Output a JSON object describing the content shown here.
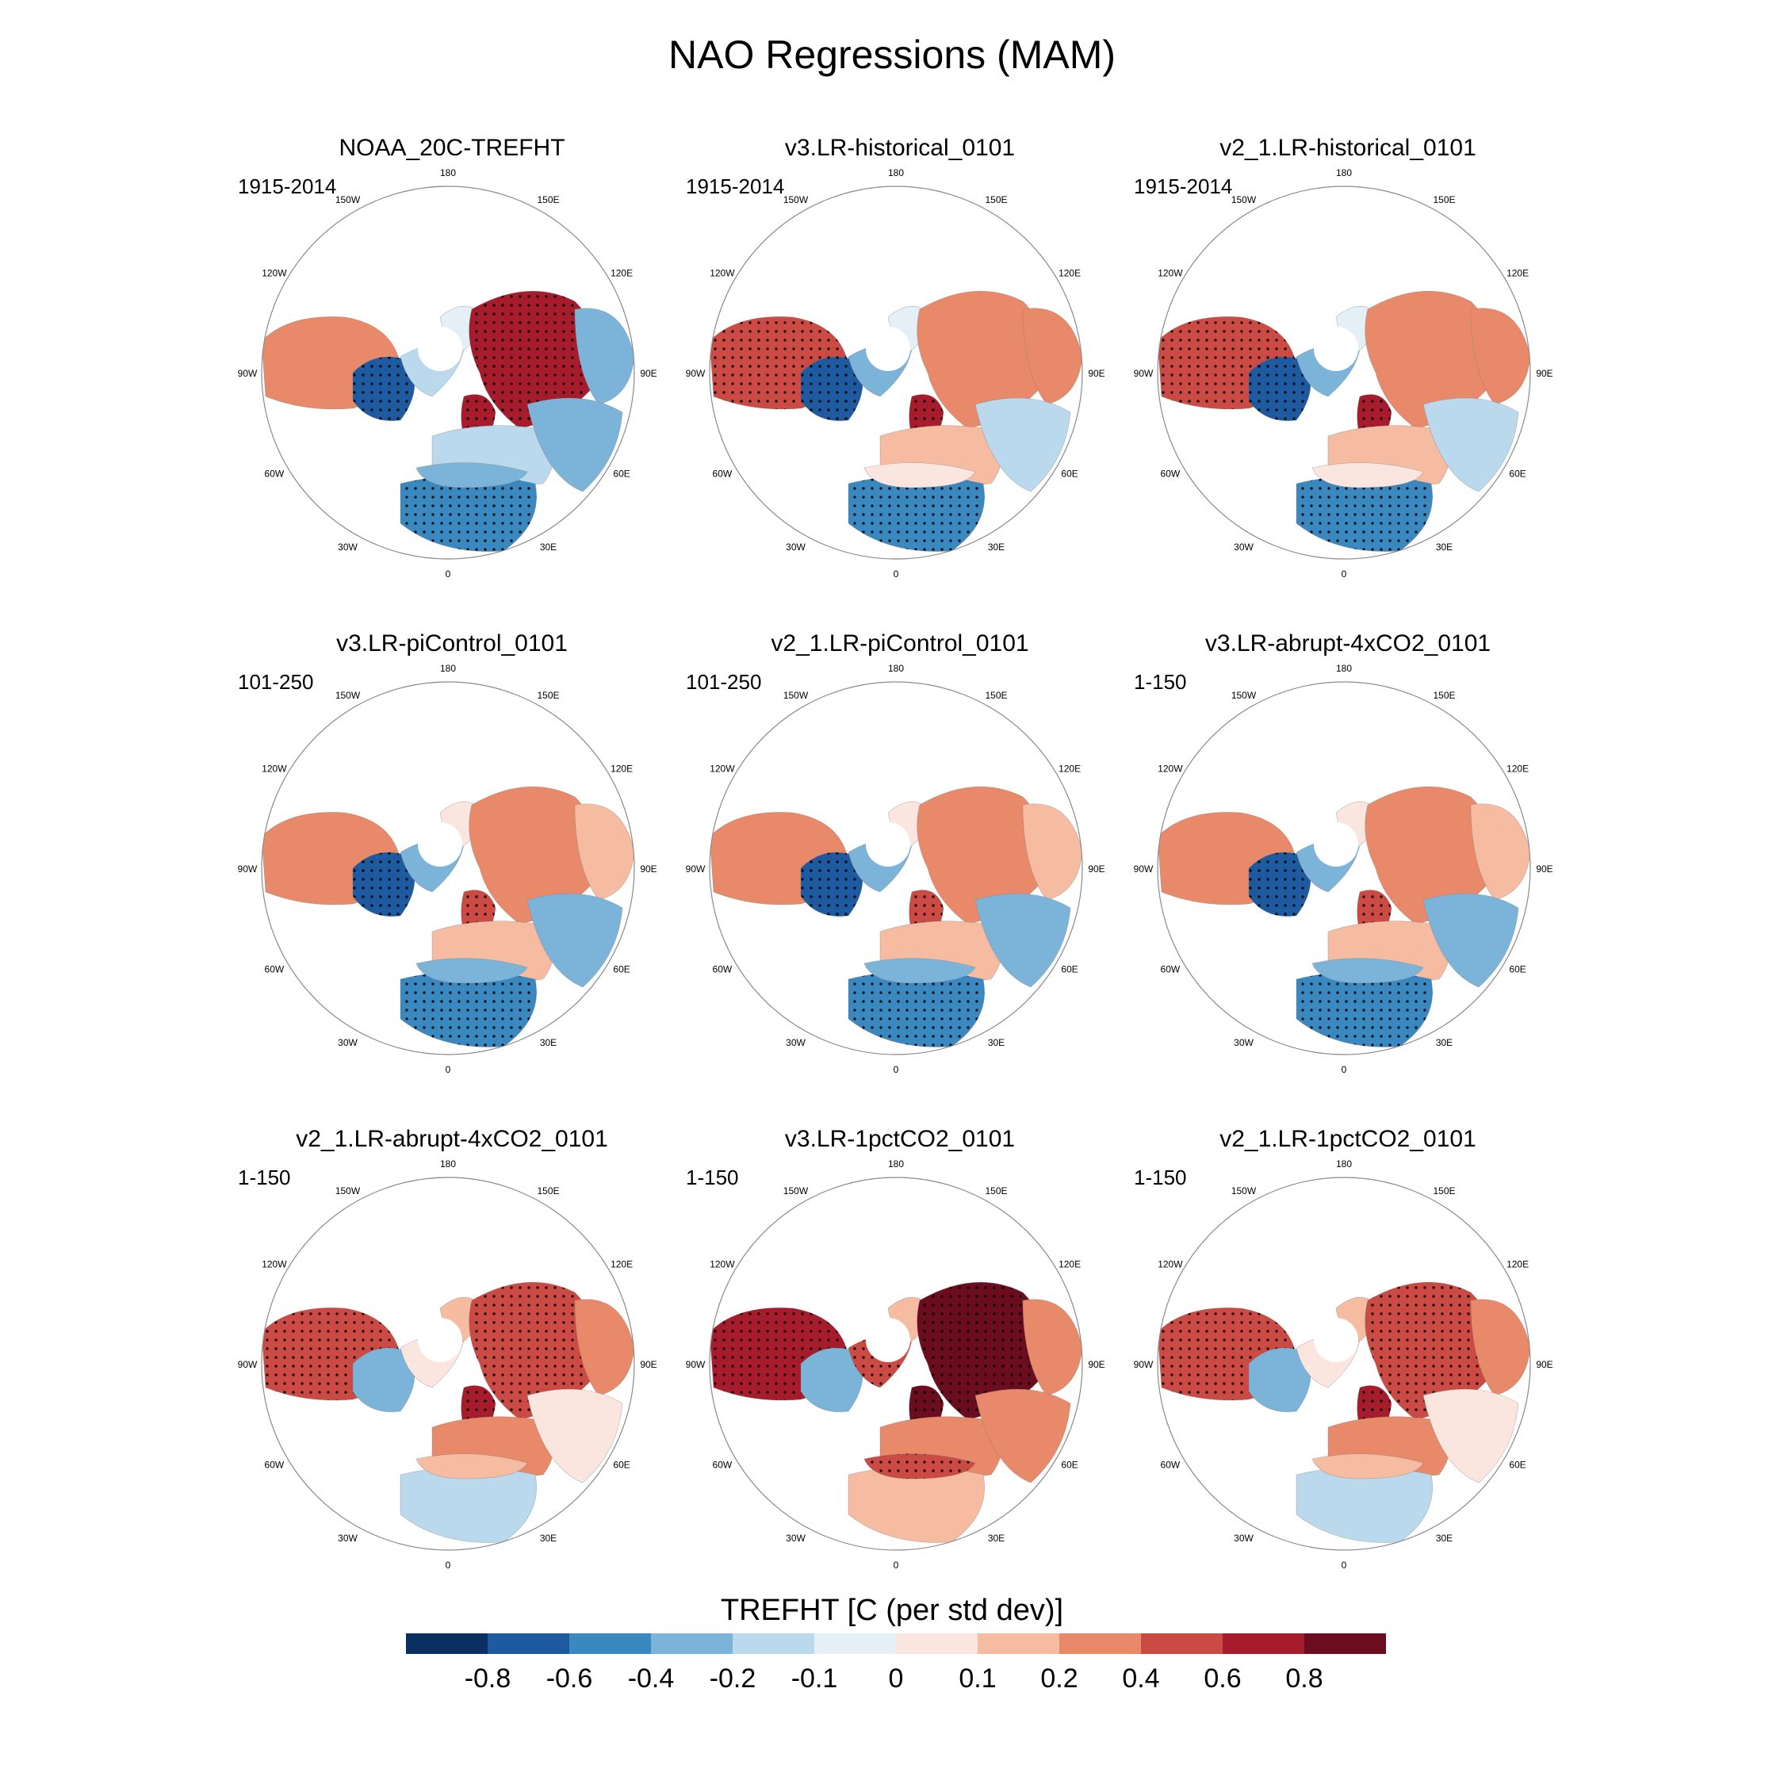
{
  "title": "NAO Regressions (MAM)",
  "colorbar": {
    "label": "TREFHT [C (per std dev)]",
    "ticks": [
      "-0.8",
      "-0.6",
      "-0.4",
      "-0.2",
      "-0.1",
      "0",
      "0.1",
      "0.2",
      "0.4",
      "0.6",
      "0.8"
    ],
    "colors": [
      "#0b2f61",
      "#1d5a9f",
      "#3a88c0",
      "#7cb4d9",
      "#bad9ec",
      "#e5eff6",
      "#fae6de",
      "#f6bca2",
      "#e8896a",
      "#cc4a44",
      "#a71c2d",
      "#6c0d1f"
    ]
  },
  "longitude_labels": [
    "180",
    "150E",
    "120E",
    "90E",
    "60E",
    "30E",
    "0",
    "30W",
    "60W",
    "90W",
    "120W",
    "150W"
  ],
  "panels": [
    {
      "title": "NOAA_20C-TREFHT",
      "period": "1915-2014",
      "pattern": "hist_obs"
    },
    {
      "title": "v3.LR-historical_0101",
      "period": "1915-2014",
      "pattern": "hist"
    },
    {
      "title": "v2_1.LR-historical_0101",
      "period": "1915-2014",
      "pattern": "hist"
    },
    {
      "title": "v3.LR-piControl_0101",
      "period": "101-250",
      "pattern": "pi"
    },
    {
      "title": "v2_1.LR-piControl_0101",
      "period": "101-250",
      "pattern": "pi"
    },
    {
      "title": "v3.LR-abrupt-4xCO2_0101",
      "period": "1-150",
      "pattern": "pi"
    },
    {
      "title": "v2_1.LR-abrupt-4xCO2_0101",
      "period": "1-150",
      "pattern": "warm"
    },
    {
      "title": "v3.LR-1pctCO2_0101",
      "period": "1-150",
      "pattern": "hot"
    },
    {
      "title": "v2_1.LR-1pctCO2_0101",
      "period": "1-150",
      "pattern": "warm"
    }
  ]
}
